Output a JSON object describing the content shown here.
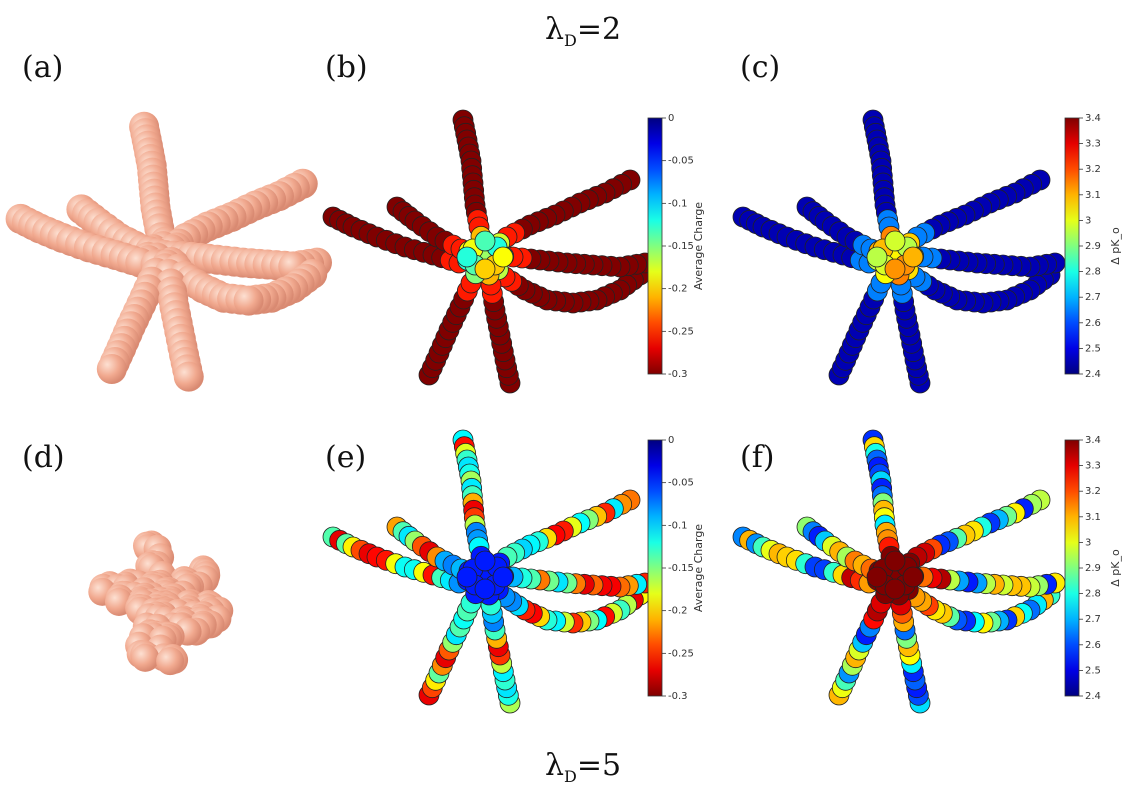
{
  "figure": {
    "top_title": "λ_D=2",
    "bottom_title": "λ_D=5",
    "panel_labels": [
      "(a)",
      "(b)",
      "(c)",
      "(d)",
      "(e)",
      "(f)"
    ]
  },
  "colorbars": {
    "charge": {
      "label": "Average Charge",
      "ticks": [
        "0",
        "-0.05",
        "-0.1",
        "-0.15",
        "-0.2",
        "-0.25",
        "-0.3"
      ],
      "range": [
        -0.3,
        0
      ]
    },
    "pk": {
      "label": "Δ pK_o",
      "ticks": [
        "3.4",
        "3.3",
        "3.2",
        "3.1",
        "3",
        "2.9",
        "2.8",
        "2.7",
        "2.6",
        "2.5",
        "2.4"
      ],
      "range": [
        2.4,
        3.4
      ]
    }
  },
  "colors": {
    "bead_render": "#f1a98f",
    "bead_shadow": "#d98a72",
    "colormap": "jet"
  }
}
